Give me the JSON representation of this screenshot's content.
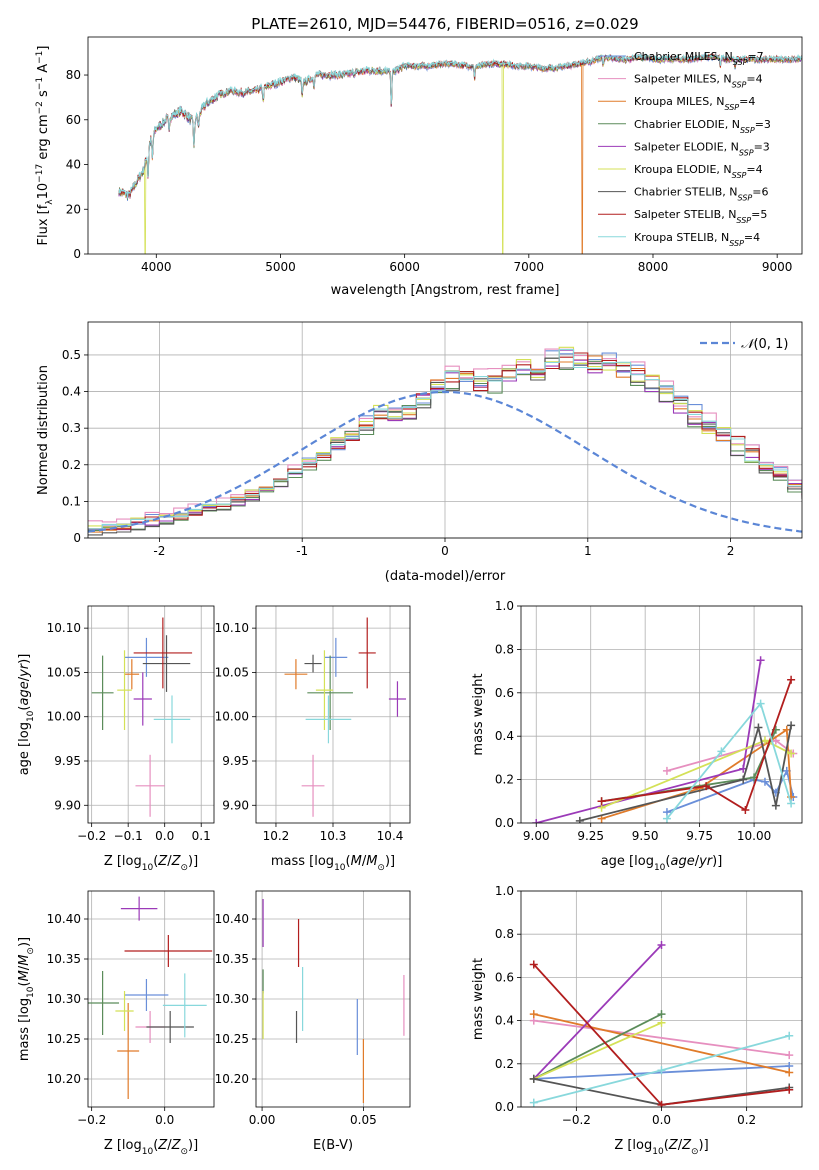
{
  "page_title": "PLATE=2610, MJD=54476, FIBERID=0516, z=0.029",
  "colors": {
    "Chabrier MILES": "#6a8fd9",
    "Salpeter MILES": "#e68fbf",
    "Kroupa MILES": "#e07b2a",
    "Chabrier ELODIE": "#5b8c5a",
    "Salpeter ELODIE": "#9b3ab8",
    "Kroupa ELODIE": "#d4e157",
    "Chabrier STELIB": "#555555",
    "Salpeter STELIB": "#b21e1e",
    "Kroupa STELIB": "#88d8dc"
  },
  "chart_data": [
    {
      "id": "spectrum",
      "type": "line",
      "title": "PLATE=2610, MJD=54476, FIBERID=0516, z=0.029",
      "xlabel": "wavelength [Angstrom, rest frame]",
      "ylabel": "Flux [f_λ 10^-17 erg cm^-2 s^-1 A^-1]",
      "xlim": [
        3450,
        9200
      ],
      "ylim": [
        0,
        97
      ],
      "xticks": [
        4000,
        5000,
        6000,
        7000,
        8000,
        9000
      ],
      "yticks": [
        0,
        20,
        40,
        60,
        80
      ],
      "grid": false,
      "legend_position": "right",
      "legend": [
        "Chabrier MILES, N_SSP=7",
        "Salpeter MILES, N_SSP=4",
        "Kroupa MILES, N_SSP=4",
        "Chabrier ELODIE, N_SSP=3",
        "Salpeter ELODIE, N_SSP=3",
        "Kroupa ELODIE, N_SSP=4",
        "Chabrier STELIB, N_SSP=6",
        "Salpeter STELIB, N_SSP=5",
        "Kroupa STELIB, N_SSP=4"
      ],
      "continuum": {
        "x": [
          3700,
          3780,
          3850,
          3900,
          3950,
          4000,
          4100,
          4200,
          4300,
          4400,
          4500,
          4600,
          4700,
          4800,
          4900,
          5000,
          5100,
          5200,
          5300,
          5400,
          5500,
          5600,
          5700,
          5800,
          5900,
          6000,
          6100,
          6200,
          6300,
          6400,
          6500,
          6600,
          6700,
          6800,
          6900,
          7000,
          7100,
          7200,
          7300,
          7400,
          7500,
          7600,
          7700,
          7800,
          7900,
          8000,
          8100,
          8200,
          8300,
          8400,
          8500,
          8600,
          8700,
          8800,
          8900,
          9000,
          9100,
          9200
        ],
        "y": [
          28,
          26,
          33,
          38,
          50,
          56,
          61,
          64,
          59,
          67,
          71,
          73,
          72,
          73,
          75,
          77,
          79,
          77,
          80,
          80,
          80,
          81,
          82,
          82,
          81,
          84,
          84,
          84,
          85,
          85,
          84,
          84,
          85,
          85,
          84,
          84,
          83,
          83,
          84,
          85,
          86,
          88,
          87,
          87,
          88,
          87,
          87,
          87,
          87,
          88,
          88,
          87,
          87,
          87,
          87,
          87,
          87,
          87
        ]
      },
      "absorption_lines": [
        {
          "x": 3934,
          "depth": 12
        },
        {
          "x": 3969,
          "depth": 10
        },
        {
          "x": 4102,
          "depth": 6
        },
        {
          "x": 4304,
          "depth": 12
        },
        {
          "x": 4340,
          "depth": 6
        },
        {
          "x": 4861,
          "depth": 6
        },
        {
          "x": 5175,
          "depth": 8
        },
        {
          "x": 5270,
          "depth": 4
        },
        {
          "x": 5893,
          "depth": 14
        },
        {
          "x": 6563,
          "depth": 6
        },
        {
          "x": 7600,
          "depth": 4
        },
        {
          "x": 8542,
          "depth": 4
        },
        {
          "x": 8662,
          "depth": 4
        }
      ],
      "dropouts": [
        {
          "model": "Kroupa ELODIE",
          "x": 3910,
          "to": 0
        },
        {
          "model": "Kroupa ELODIE",
          "x": 6790,
          "to": 0
        },
        {
          "model": "Kroupa MILES",
          "x": 7430,
          "to": 0
        }
      ]
    },
    {
      "id": "residuals",
      "type": "step-histogram",
      "xlabel": "(data-model)/error",
      "ylabel": "Normed distribution",
      "xlim": [
        -2.5,
        2.5
      ],
      "ylim": [
        0,
        0.59
      ],
      "xticks": [
        -2,
        -1,
        0,
        1,
        2
      ],
      "yticks": [
        0.0,
        0.1,
        0.2,
        0.3,
        0.4,
        0.5
      ],
      "grid": true,
      "legend_position": "upper right",
      "reference_curve": {
        "name": "N(0,1)",
        "style": "dashed",
        "color": "#5b86d6"
      },
      "bin_width": 0.1,
      "bin_start": -2.5,
      "base_heights": [
        0.02,
        0.025,
        0.03,
        0.035,
        0.045,
        0.05,
        0.055,
        0.065,
        0.075,
        0.085,
        0.1,
        0.115,
        0.13,
        0.15,
        0.175,
        0.2,
        0.22,
        0.25,
        0.28,
        0.31,
        0.33,
        0.34,
        0.35,
        0.37,
        0.41,
        0.43,
        0.44,
        0.42,
        0.42,
        0.44,
        0.46,
        0.45,
        0.48,
        0.49,
        0.48,
        0.47,
        0.47,
        0.45,
        0.44,
        0.42,
        0.39,
        0.36,
        0.33,
        0.3,
        0.27,
        0.25,
        0.22,
        0.19,
        0.17,
        0.14,
        0.12,
        0.1,
        0.085,
        0.075,
        0.065,
        0.055,
        0.045,
        0.035,
        0.03,
        0.025
      ],
      "series_offsets": [
        {
          "name": "Chabrier MILES",
          "offset": 0.012
        },
        {
          "name": "Salpeter MILES",
          "offset": 0.018
        },
        {
          "name": "Kroupa MILES",
          "offset": 0.006
        },
        {
          "name": "Chabrier ELODIE",
          "offset": -0.006
        },
        {
          "name": "Salpeter ELODIE",
          "offset": 0.0
        },
        {
          "name": "Kroupa ELODIE",
          "offset": 0.01
        },
        {
          "name": "Chabrier STELIB",
          "offset": -0.004
        },
        {
          "name": "Salpeter STELIB",
          "offset": 0.004
        },
        {
          "name": "Kroupa STELIB",
          "offset": 0.008
        }
      ]
    },
    {
      "id": "age_vs_Z",
      "type": "errorbar",
      "xlabel": "Z [log10(Z/Z⊙)]",
      "ylabel": "age  [log10(age/yr)]",
      "xlim": [
        -0.21,
        0.135
      ],
      "ylim": [
        9.88,
        10.125
      ],
      "xticks": [
        -0.2,
        -0.1,
        0.0,
        0.1
      ],
      "xtick_labels": [
        "−0.2",
        "−0.1",
        "0.0",
        "0.1"
      ],
      "yticks": [
        9.9,
        9.95,
        10.0,
        10.05,
        10.1
      ],
      "ytick_labels": [
        "9.90",
        "9.95",
        "10.00",
        "10.05",
        "10.10"
      ],
      "grid": true,
      "points": [
        {
          "name": "Chabrier MILES",
          "x": -0.05,
          "xerr": 0.06,
          "y": 10.067,
          "yerr": 0.022
        },
        {
          "name": "Salpeter MILES",
          "x": -0.04,
          "xerr": 0.04,
          "y": 9.922,
          "yerr": 0.035
        },
        {
          "name": "Kroupa MILES",
          "x": -0.09,
          "xerr": 0.02,
          "y": 10.048,
          "yerr": 0.017
        },
        {
          "name": "Chabrier ELODIE",
          "x": -0.17,
          "xerr": 0.03,
          "y": 10.027,
          "yerr": 0.042
        },
        {
          "name": "Salpeter ELODIE",
          "x": -0.06,
          "xerr": 0.025,
          "y": 10.02,
          "yerr": 0.03
        },
        {
          "name": "Kroupa ELODIE",
          "x": -0.11,
          "xerr": 0.02,
          "y": 10.03,
          "yerr": 0.045
        },
        {
          "name": "Chabrier STELIB",
          "x": 0.005,
          "xerr": 0.065,
          "y": 10.06,
          "yerr": 0.032
        },
        {
          "name": "Salpeter STELIB",
          "x": -0.005,
          "xerr": 0.08,
          "y": 10.072,
          "yerr": 0.04
        },
        {
          "name": "Kroupa STELIB",
          "x": 0.02,
          "xerr": 0.05,
          "y": 9.997,
          "yerr": 0.027
        }
      ]
    },
    {
      "id": "age_vs_mass",
      "type": "errorbar",
      "xlabel": "mass [log10(M/M⊙)]",
      "ylabel": "",
      "xlim": [
        10.165,
        10.435
      ],
      "ylim": [
        9.88,
        10.125
      ],
      "xticks": [
        10.2,
        10.3,
        10.4
      ],
      "xtick_labels": [
        "10.2",
        "10.3",
        "10.4"
      ],
      "yticks": [
        9.9,
        9.95,
        10.0,
        10.05,
        10.1
      ],
      "ytick_labels": [
        "9.90",
        "9.95",
        "10.00",
        "10.05",
        "10.10"
      ],
      "grid": true,
      "points": [
        {
          "name": "Chabrier MILES",
          "x": 10.305,
          "xerr": 0.02,
          "y": 10.067,
          "yerr": 0.022
        },
        {
          "name": "Salpeter MILES",
          "x": 10.265,
          "xerr": 0.02,
          "y": 9.922,
          "yerr": 0.035
        },
        {
          "name": "Kroupa MILES",
          "x": 10.235,
          "xerr": 0.02,
          "y": 10.048,
          "yerr": 0.017
        },
        {
          "name": "Chabrier ELODIE",
          "x": 10.295,
          "xerr": 0.04,
          "y": 10.027,
          "yerr": 0.042
        },
        {
          "name": "Salpeter ELODIE",
          "x": 10.413,
          "xerr": 0.015,
          "y": 10.02,
          "yerr": 0.02
        },
        {
          "name": "Kroupa ELODIE",
          "x": 10.285,
          "xerr": 0.015,
          "y": 10.03,
          "yerr": 0.045
        },
        {
          "name": "Chabrier STELIB",
          "x": 10.265,
          "xerr": 0.015,
          "y": 10.06,
          "yerr": 0.01
        },
        {
          "name": "Salpeter STELIB",
          "x": 10.36,
          "xerr": 0.015,
          "y": 10.072,
          "yerr": 0.04
        },
        {
          "name": "Kroupa STELIB",
          "x": 10.292,
          "xerr": 0.04,
          "y": 9.997,
          "yerr": 0.027
        }
      ]
    },
    {
      "id": "weight_vs_age",
      "type": "line",
      "xlabel": "age  [log10(age/yr)]",
      "ylabel": "mass weight",
      "xlim": [
        8.93,
        10.22
      ],
      "ylim": [
        0.0,
        1.0
      ],
      "xticks": [
        9.0,
        9.25,
        9.5,
        9.75,
        10.0
      ],
      "xtick_labels": [
        "9.00",
        "9.25",
        "9.50",
        "9.75",
        "10.00"
      ],
      "yticks": [
        0.0,
        0.2,
        0.4,
        0.6,
        0.8,
        1.0
      ],
      "ytick_labels": [
        "0.0",
        "0.2",
        "0.4",
        "0.6",
        "0.8",
        "1.0"
      ],
      "grid": true,
      "series": [
        {
          "name": "Chabrier MILES",
          "x": [
            9.6,
            10.0,
            10.05,
            10.1,
            10.15,
            10.18
          ],
          "y": [
            0.05,
            0.2,
            0.19,
            0.14,
            0.24,
            0.12
          ]
        },
        {
          "name": "Salpeter MILES",
          "x": [
            9.6,
            10.1,
            10.18
          ],
          "y": [
            0.24,
            0.38,
            0.32
          ]
        },
        {
          "name": "Kroupa MILES",
          "x": [
            9.3,
            9.75,
            10.15,
            10.17
          ],
          "y": [
            0.02,
            0.16,
            0.43,
            0.12
          ]
        },
        {
          "name": "Chabrier ELODIE",
          "x": [
            9.3,
            10.0,
            10.1
          ],
          "y": [
            0.1,
            0.21,
            0.43
          ]
        },
        {
          "name": "Salpeter ELODIE",
          "x": [
            9.0,
            9.95,
            10.03
          ],
          "y": [
            0.0,
            0.25,
            0.75
          ]
        },
        {
          "name": "Kroupa ELODIE",
          "x": [
            9.3,
            10.05,
            10.17
          ],
          "y": [
            0.07,
            0.38,
            0.32
          ]
        },
        {
          "name": "Chabrier STELIB",
          "x": [
            9.2,
            9.95,
            10.02,
            10.1,
            10.17
          ],
          "y": [
            0.01,
            0.2,
            0.44,
            0.08,
            0.45
          ]
        },
        {
          "name": "Salpeter STELIB",
          "x": [
            9.3,
            9.78,
            9.96,
            10.17
          ],
          "y": [
            0.1,
            0.17,
            0.06,
            0.66
          ]
        },
        {
          "name": "Kroupa STELIB",
          "x": [
            9.6,
            9.85,
            10.03,
            10.17
          ],
          "y": [
            0.02,
            0.33,
            0.55,
            0.09
          ]
        }
      ]
    },
    {
      "id": "mass_vs_Z",
      "type": "errorbar",
      "xlabel": "Z [log10(Z/Z⊙)]",
      "ylabel": "mass [log10(M/M⊙)]",
      "xlim": [
        -0.21,
        0.135
      ],
      "ylim": [
        10.165,
        10.435
      ],
      "xticks": [
        -0.2,
        0.0
      ],
      "xtick_labels": [
        "−0.2",
        "0.0"
      ],
      "yticks": [
        10.2,
        10.25,
        10.3,
        10.35,
        10.4
      ],
      "ytick_labels": [
        "10.20",
        "10.25",
        "10.30",
        "10.35",
        "10.40"
      ],
      "grid": true,
      "points": [
        {
          "name": "Chabrier MILES",
          "x": -0.05,
          "xerr": 0.06,
          "y": 10.305,
          "yerr": 0.02
        },
        {
          "name": "Salpeter MILES",
          "x": -0.04,
          "xerr": 0.04,
          "y": 10.265,
          "yerr": 0.02
        },
        {
          "name": "Kroupa MILES",
          "x": -0.1,
          "xerr": 0.03,
          "y": 10.235,
          "yerr": 0.06
        },
        {
          "name": "Chabrier ELODIE",
          "x": -0.17,
          "xerr": 0.045,
          "y": 10.295,
          "yerr": 0.04
        },
        {
          "name": "Salpeter ELODIE",
          "x": -0.07,
          "xerr": 0.05,
          "y": 10.413,
          "yerr": 0.015
        },
        {
          "name": "Kroupa ELODIE",
          "x": -0.11,
          "xerr": 0.025,
          "y": 10.285,
          "yerr": 0.025
        },
        {
          "name": "Chabrier STELIB",
          "x": 0.015,
          "xerr": 0.065,
          "y": 10.265,
          "yerr": 0.02
        },
        {
          "name": "Salpeter STELIB",
          "x": 0.01,
          "xerr": 0.12,
          "y": 10.36,
          "yerr": 0.02
        },
        {
          "name": "Kroupa STELIB",
          "x": 0.055,
          "xerr": 0.06,
          "y": 10.292,
          "yerr": 0.04
        }
      ]
    },
    {
      "id": "mass_vs_ebv",
      "type": "errorbar",
      "xlabel": "E(B-V)",
      "ylabel": "",
      "xlim": [
        -0.003,
        0.073
      ],
      "ylim": [
        10.165,
        10.435
      ],
      "xticks": [
        0.0,
        0.05
      ],
      "xtick_labels": [
        "0.00",
        "0.05"
      ],
      "yticks": [
        10.2,
        10.25,
        10.3,
        10.35,
        10.4
      ],
      "ytick_labels": [
        "10.20",
        "10.25",
        "10.30",
        "10.35",
        "10.40"
      ],
      "grid": true,
      "points": [
        {
          "name": "Chabrier MILES",
          "x": 0.047,
          "xerr": 0,
          "y": 10.265,
          "yerr": 0.035
        },
        {
          "name": "Salpeter MILES",
          "x": 0.07,
          "xerr": 0,
          "y": 10.292,
          "yerr": 0.038
        },
        {
          "name": "Kroupa MILES",
          "x": 0.05,
          "xerr": 0,
          "y": 10.21,
          "yerr": 0.04
        },
        {
          "name": "Chabrier ELODIE",
          "x": 0.0005,
          "xerr": 0,
          "y": 10.322,
          "yerr": 0.015
        },
        {
          "name": "Salpeter ELODIE",
          "x": 0.0005,
          "xerr": 0,
          "y": 10.395,
          "yerr": 0.03
        },
        {
          "name": "Kroupa ELODIE",
          "x": 0.0005,
          "xerr": 0,
          "y": 10.28,
          "yerr": 0.03
        },
        {
          "name": "Chabrier STELIB",
          "x": 0.017,
          "xerr": 0,
          "y": 10.265,
          "yerr": 0.02
        },
        {
          "name": "Salpeter STELIB",
          "x": 0.018,
          "xerr": 0,
          "y": 10.37,
          "yerr": 0.03
        },
        {
          "name": "Kroupa STELIB",
          "x": 0.02,
          "xerr": 0,
          "y": 10.3,
          "yerr": 0.04
        }
      ]
    },
    {
      "id": "weight_vs_Z",
      "type": "line",
      "xlabel": "Z [log10(Z/Z⊙)]",
      "ylabel": "mass weight",
      "xlim": [
        -0.33,
        0.33
      ],
      "ylim": [
        0.0,
        1.0
      ],
      "xticks": [
        -0.2,
        0.0,
        0.2
      ],
      "xtick_labels": [
        "−0.2",
        "0.0",
        "0.2"
      ],
      "yticks": [
        0.0,
        0.2,
        0.4,
        0.6,
        0.8,
        1.0
      ],
      "ytick_labels": [
        "0.0",
        "0.2",
        "0.4",
        "0.6",
        "0.8",
        "1.0"
      ],
      "grid": true,
      "series": [
        {
          "name": "Chabrier MILES",
          "x": [
            -0.3,
            0.3
          ],
          "y": [
            0.13,
            0.19
          ]
        },
        {
          "name": "Salpeter MILES",
          "x": [
            -0.3,
            0.3
          ],
          "y": [
            0.4,
            0.24
          ]
        },
        {
          "name": "Kroupa MILES",
          "x": [
            -0.3,
            0.3
          ],
          "y": [
            0.43,
            0.16
          ]
        },
        {
          "name": "Chabrier ELODIE",
          "x": [
            -0.3,
            0.0
          ],
          "y": [
            0.13,
            0.43
          ]
        },
        {
          "name": "Salpeter ELODIE",
          "x": [
            -0.3,
            0.0
          ],
          "y": [
            0.13,
            0.75
          ]
        },
        {
          "name": "Kroupa ELODIE",
          "x": [
            -0.3,
            0.0
          ],
          "y": [
            0.13,
            0.39
          ]
        },
        {
          "name": "Chabrier STELIB",
          "x": [
            -0.3,
            0.0,
            0.3
          ],
          "y": [
            0.13,
            0.01,
            0.09
          ]
        },
        {
          "name": "Salpeter STELIB",
          "x": [
            -0.3,
            0.0,
            0.3
          ],
          "y": [
            0.66,
            0.01,
            0.08
          ]
        },
        {
          "name": "Kroupa STELIB",
          "x": [
            -0.3,
            0.0,
            0.3
          ],
          "y": [
            0.02,
            0.17,
            0.33
          ]
        }
      ]
    }
  ]
}
